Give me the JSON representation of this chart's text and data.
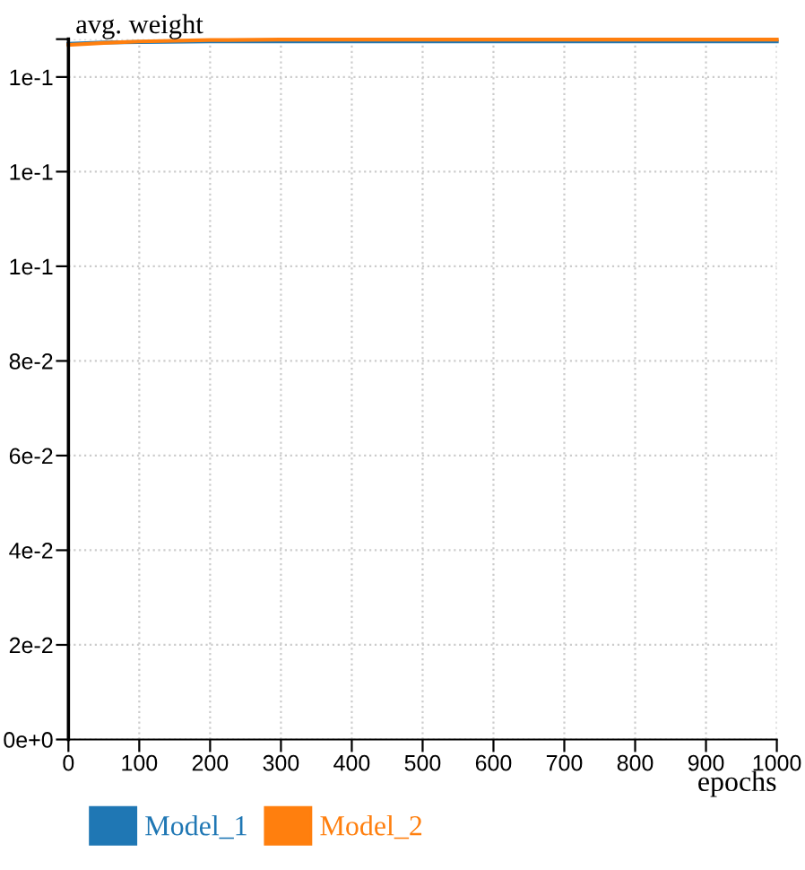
{
  "chart_data": {
    "type": "line",
    "xlabel": "epochs",
    "ylabel": "avg. weight",
    "xlim": [
      0,
      1000
    ],
    "xticks": [
      0,
      100,
      200,
      300,
      400,
      500,
      600,
      700,
      800,
      900,
      1000
    ],
    "ylim": [
      0,
      0.148
    ],
    "yticks": [
      {
        "value": 0,
        "label": "0e+0"
      },
      {
        "value": 0.02,
        "label": "2e-2"
      },
      {
        "value": 0.04,
        "label": "4e-2"
      },
      {
        "value": 0.06,
        "label": "6e-2"
      },
      {
        "value": 0.08,
        "label": "8e-2"
      },
      {
        "value": 0.1,
        "label": "1e-1"
      },
      {
        "value": 0.12,
        "label": "1e-1"
      },
      {
        "value": 0.14,
        "label": "1e-1"
      },
      {
        "value": 0.148,
        "label": null
      }
    ],
    "grid": true,
    "legend": "bottom",
    "marker": "none",
    "line_style": "solid",
    "series": [
      {
        "name": "Model_1",
        "color": "#1f77b4",
        "x": [
          0,
          50,
          100,
          200,
          300,
          500,
          700,
          1000
        ],
        "values": [
          0.147,
          0.1473,
          0.1474,
          0.1475,
          0.1475,
          0.1475,
          0.1475,
          0.1475
        ]
      },
      {
        "name": "Model_2",
        "color": "#ff7f0e",
        "x": [
          0,
          50,
          100,
          200,
          300,
          500,
          700,
          1000
        ],
        "values": [
          0.1468,
          0.1472,
          0.1475,
          0.1478,
          0.1479,
          0.1479,
          0.1479,
          0.1479
        ]
      }
    ]
  }
}
